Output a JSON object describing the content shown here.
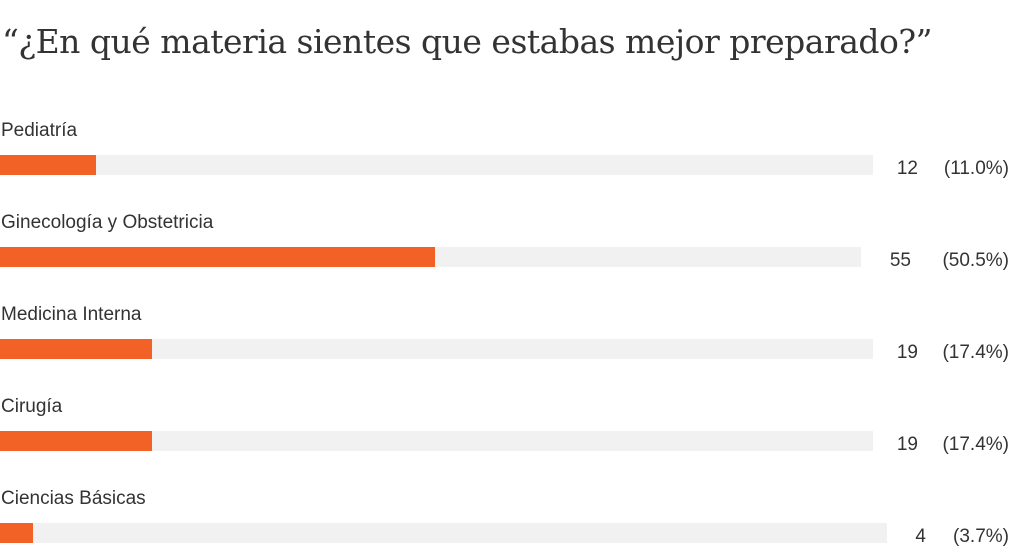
{
  "chart_data": {
    "type": "bar",
    "orientation": "horizontal",
    "title": "“¿En qué materia sientes que estabas mejor preparado?”",
    "categories": [
      "Pediatría",
      "Ginecología y Obstetricia",
      "Medicina Interna",
      "Cirugía",
      "Ciencias Básicas"
    ],
    "values": [
      12,
      55,
      19,
      19,
      4
    ],
    "percent_labels": [
      "(11.0%)",
      "(50.5%)",
      "(17.4%)",
      "(17.4%)",
      "(3.7%)"
    ],
    "percents": [
      11.0,
      50.5,
      17.4,
      17.4,
      3.7
    ],
    "xlim": [
      0,
      100
    ],
    "colors": {
      "bar": "#f26125",
      "track": "#f1f1f1"
    }
  }
}
